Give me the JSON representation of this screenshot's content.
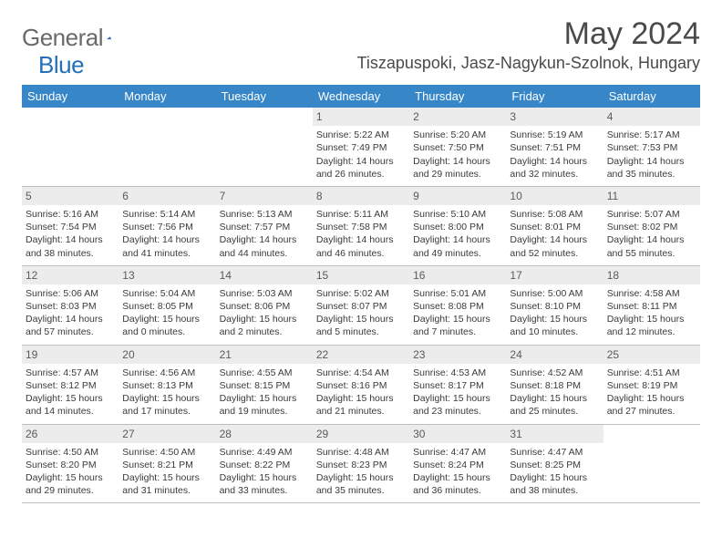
{
  "logo": {
    "textGeneral": "General",
    "textBlue": "Blue"
  },
  "title": "May 2024",
  "location": "Tiszapuspoki, Jasz-Nagykun-Szolnok, Hungary",
  "colors": {
    "headerBg": "#3686c8",
    "headerText": "#ffffff",
    "dayNumBg": "#ececec",
    "bodyText": "#3a3a3a",
    "rule": "#bfbfbf",
    "logoBlue": "#2270b8",
    "logoGray": "#6a6a6a"
  },
  "dayNames": [
    "Sunday",
    "Monday",
    "Tuesday",
    "Wednesday",
    "Thursday",
    "Friday",
    "Saturday"
  ],
  "weeks": [
    [
      {
        "n": "",
        "sr": "",
        "ss": "",
        "dl": ""
      },
      {
        "n": "",
        "sr": "",
        "ss": "",
        "dl": ""
      },
      {
        "n": "",
        "sr": "",
        "ss": "",
        "dl": ""
      },
      {
        "n": "1",
        "sr": "Sunrise: 5:22 AM",
        "ss": "Sunset: 7:49 PM",
        "dl": "Daylight: 14 hours and 26 minutes."
      },
      {
        "n": "2",
        "sr": "Sunrise: 5:20 AM",
        "ss": "Sunset: 7:50 PM",
        "dl": "Daylight: 14 hours and 29 minutes."
      },
      {
        "n": "3",
        "sr": "Sunrise: 5:19 AM",
        "ss": "Sunset: 7:51 PM",
        "dl": "Daylight: 14 hours and 32 minutes."
      },
      {
        "n": "4",
        "sr": "Sunrise: 5:17 AM",
        "ss": "Sunset: 7:53 PM",
        "dl": "Daylight: 14 hours and 35 minutes."
      }
    ],
    [
      {
        "n": "5",
        "sr": "Sunrise: 5:16 AM",
        "ss": "Sunset: 7:54 PM",
        "dl": "Daylight: 14 hours and 38 minutes."
      },
      {
        "n": "6",
        "sr": "Sunrise: 5:14 AM",
        "ss": "Sunset: 7:56 PM",
        "dl": "Daylight: 14 hours and 41 minutes."
      },
      {
        "n": "7",
        "sr": "Sunrise: 5:13 AM",
        "ss": "Sunset: 7:57 PM",
        "dl": "Daylight: 14 hours and 44 minutes."
      },
      {
        "n": "8",
        "sr": "Sunrise: 5:11 AM",
        "ss": "Sunset: 7:58 PM",
        "dl": "Daylight: 14 hours and 46 minutes."
      },
      {
        "n": "9",
        "sr": "Sunrise: 5:10 AM",
        "ss": "Sunset: 8:00 PM",
        "dl": "Daylight: 14 hours and 49 minutes."
      },
      {
        "n": "10",
        "sr": "Sunrise: 5:08 AM",
        "ss": "Sunset: 8:01 PM",
        "dl": "Daylight: 14 hours and 52 minutes."
      },
      {
        "n": "11",
        "sr": "Sunrise: 5:07 AM",
        "ss": "Sunset: 8:02 PM",
        "dl": "Daylight: 14 hours and 55 minutes."
      }
    ],
    [
      {
        "n": "12",
        "sr": "Sunrise: 5:06 AM",
        "ss": "Sunset: 8:03 PM",
        "dl": "Daylight: 14 hours and 57 minutes."
      },
      {
        "n": "13",
        "sr": "Sunrise: 5:04 AM",
        "ss": "Sunset: 8:05 PM",
        "dl": "Daylight: 15 hours and 0 minutes."
      },
      {
        "n": "14",
        "sr": "Sunrise: 5:03 AM",
        "ss": "Sunset: 8:06 PM",
        "dl": "Daylight: 15 hours and 2 minutes."
      },
      {
        "n": "15",
        "sr": "Sunrise: 5:02 AM",
        "ss": "Sunset: 8:07 PM",
        "dl": "Daylight: 15 hours and 5 minutes."
      },
      {
        "n": "16",
        "sr": "Sunrise: 5:01 AM",
        "ss": "Sunset: 8:08 PM",
        "dl": "Daylight: 15 hours and 7 minutes."
      },
      {
        "n": "17",
        "sr": "Sunrise: 5:00 AM",
        "ss": "Sunset: 8:10 PM",
        "dl": "Daylight: 15 hours and 10 minutes."
      },
      {
        "n": "18",
        "sr": "Sunrise: 4:58 AM",
        "ss": "Sunset: 8:11 PM",
        "dl": "Daylight: 15 hours and 12 minutes."
      }
    ],
    [
      {
        "n": "19",
        "sr": "Sunrise: 4:57 AM",
        "ss": "Sunset: 8:12 PM",
        "dl": "Daylight: 15 hours and 14 minutes."
      },
      {
        "n": "20",
        "sr": "Sunrise: 4:56 AM",
        "ss": "Sunset: 8:13 PM",
        "dl": "Daylight: 15 hours and 17 minutes."
      },
      {
        "n": "21",
        "sr": "Sunrise: 4:55 AM",
        "ss": "Sunset: 8:15 PM",
        "dl": "Daylight: 15 hours and 19 minutes."
      },
      {
        "n": "22",
        "sr": "Sunrise: 4:54 AM",
        "ss": "Sunset: 8:16 PM",
        "dl": "Daylight: 15 hours and 21 minutes."
      },
      {
        "n": "23",
        "sr": "Sunrise: 4:53 AM",
        "ss": "Sunset: 8:17 PM",
        "dl": "Daylight: 15 hours and 23 minutes."
      },
      {
        "n": "24",
        "sr": "Sunrise: 4:52 AM",
        "ss": "Sunset: 8:18 PM",
        "dl": "Daylight: 15 hours and 25 minutes."
      },
      {
        "n": "25",
        "sr": "Sunrise: 4:51 AM",
        "ss": "Sunset: 8:19 PM",
        "dl": "Daylight: 15 hours and 27 minutes."
      }
    ],
    [
      {
        "n": "26",
        "sr": "Sunrise: 4:50 AM",
        "ss": "Sunset: 8:20 PM",
        "dl": "Daylight: 15 hours and 29 minutes."
      },
      {
        "n": "27",
        "sr": "Sunrise: 4:50 AM",
        "ss": "Sunset: 8:21 PM",
        "dl": "Daylight: 15 hours and 31 minutes."
      },
      {
        "n": "28",
        "sr": "Sunrise: 4:49 AM",
        "ss": "Sunset: 8:22 PM",
        "dl": "Daylight: 15 hours and 33 minutes."
      },
      {
        "n": "29",
        "sr": "Sunrise: 4:48 AM",
        "ss": "Sunset: 8:23 PM",
        "dl": "Daylight: 15 hours and 35 minutes."
      },
      {
        "n": "30",
        "sr": "Sunrise: 4:47 AM",
        "ss": "Sunset: 8:24 PM",
        "dl": "Daylight: 15 hours and 36 minutes."
      },
      {
        "n": "31",
        "sr": "Sunrise: 4:47 AM",
        "ss": "Sunset: 8:25 PM",
        "dl": "Daylight: 15 hours and 38 minutes."
      },
      {
        "n": "",
        "sr": "",
        "ss": "",
        "dl": ""
      }
    ]
  ]
}
